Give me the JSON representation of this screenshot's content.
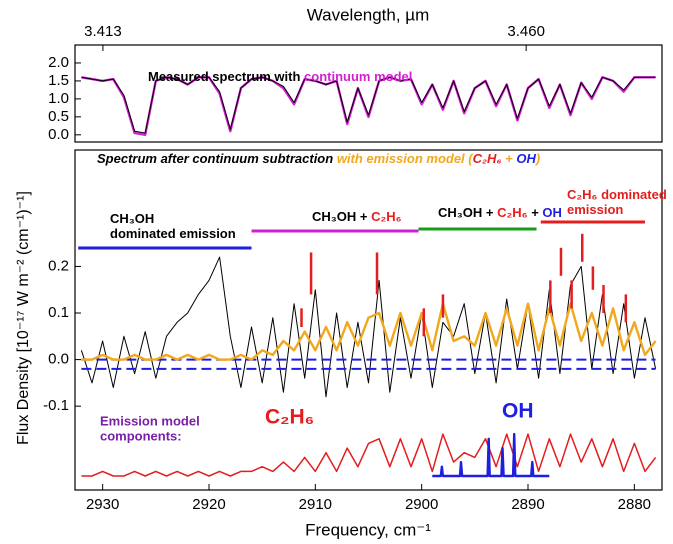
{
  "chart_data": [
    {
      "type": "line",
      "x2label": "Wavelength, µm",
      "x2ticks": [
        3.413,
        {
          "value": 3.46,
          "label": "3.460"
        }
      ],
      "title_parts": [
        {
          "text": "Measured spectrum with ",
          "color": "#000000"
        },
        {
          "text": "continuum model",
          "color": "#d21fd2"
        }
      ],
      "xlim": [
        2932.6,
        2877.4
      ],
      "ylim": [
        -0.2,
        2.5
      ],
      "yticks": [
        {
          "value": 0,
          "label": "0.0"
        },
        0.5,
        {
          "value": 1,
          "label": "1.0"
        },
        1.5,
        {
          "value": 2,
          "label": "2.0"
        }
      ],
      "x": [
        2932,
        2931,
        2930,
        2929,
        2928,
        2927,
        2926,
        2925,
        2924,
        2923,
        2922,
        2921,
        2920,
        2919,
        2918,
        2917,
        2916,
        2915,
        2914,
        2913,
        2912,
        2911,
        2910,
        2909,
        2908,
        2907,
        2906,
        2905,
        2904,
        2903,
        2902,
        2901,
        2900,
        2899,
        2898,
        2897,
        2896,
        2895,
        2894,
        2893,
        2892,
        2891,
        2890,
        2889,
        2888,
        2887,
        2886,
        2885,
        2884,
        2883,
        2882,
        2881,
        2880,
        2879,
        2878
      ],
      "series": [
        {
          "color": "#d21fd2",
          "width": 2.4,
          "values": [
            1.6,
            1.55,
            1.5,
            1.55,
            1.05,
            0.05,
            0.0,
            1.5,
            1.6,
            1.55,
            1.4,
            1.6,
            1.6,
            1.15,
            0.1,
            1.3,
            1.55,
            1.6,
            1.5,
            1.3,
            0.85,
            1.55,
            1.5,
            1.4,
            1.5,
            0.3,
            1.3,
            0.5,
            1.5,
            1.6,
            1.5,
            1.55,
            0.85,
            1.4,
            0.7,
            1.5,
            0.6,
            1.3,
            1.5,
            0.8,
            1.4,
            0.4,
            1.3,
            1.55,
            0.75,
            1.4,
            0.55,
            1.45,
            1.0,
            1.6,
            1.5,
            1.2,
            1.6,
            1.6,
            1.6
          ]
        },
        {
          "color": "#000000",
          "width": 1,
          "values": [
            1.6,
            1.55,
            1.5,
            1.55,
            1.1,
            0.1,
            0.05,
            1.5,
            1.6,
            1.55,
            1.4,
            1.6,
            1.6,
            1.2,
            0.15,
            1.3,
            1.55,
            1.6,
            1.5,
            1.35,
            0.9,
            1.55,
            1.5,
            1.4,
            1.5,
            0.35,
            1.3,
            0.55,
            1.5,
            1.6,
            1.5,
            1.55,
            0.9,
            1.4,
            0.75,
            1.5,
            0.65,
            1.3,
            1.5,
            0.85,
            1.4,
            0.45,
            1.3,
            1.55,
            0.8,
            1.4,
            0.6,
            1.45,
            1.05,
            1.6,
            1.5,
            1.25,
            1.6,
            1.6,
            1.6
          ]
        }
      ]
    },
    {
      "type": "line",
      "xlabel": "Frequency, cm⁻¹",
      "ylabel": "Flux Density [10⁻¹⁷ W m⁻² (cm⁻¹)⁻¹]",
      "title_parts": [
        {
          "text": "Spectrum after continuum subtraction ",
          "color": "#000000"
        },
        {
          "text": "with emission model (",
          "color": "#f2a81d"
        },
        {
          "text": "C₂H₆",
          "color": "#e41e1e"
        },
        {
          "text": " + ",
          "color": "#f2a81d"
        },
        {
          "text": "OH",
          "color": "#1f1fe0"
        },
        {
          "text": ")",
          "color": "#f2a81d"
        }
      ],
      "xlim": [
        2932.6,
        2877.4
      ],
      "ylim": [
        -0.28,
        0.45
      ],
      "xticks": [
        2930,
        2920,
        2910,
        2900,
        2890,
        2880
      ],
      "yticks": [
        -0.1,
        {
          "value": 0,
          "label": "0.0"
        },
        0.1,
        0.2
      ],
      "x": [
        2932,
        2931,
        2930,
        2929,
        2928,
        2927,
        2926,
        2925,
        2924,
        2923,
        2922,
        2921,
        2920,
        2919,
        2918,
        2917,
        2916,
        2915,
        2914,
        2913,
        2912,
        2911,
        2910,
        2909,
        2908,
        2907,
        2906,
        2905,
        2904,
        2903,
        2902,
        2901,
        2900,
        2899,
        2898,
        2897,
        2896,
        2895,
        2894,
        2893,
        2892,
        2891,
        2890,
        2889,
        2888,
        2887,
        2886,
        2885,
        2884,
        2883,
        2882,
        2881,
        2880,
        2879,
        2878
      ],
      "series": [
        {
          "color": "#000000",
          "width": 1,
          "values": [
            0.02,
            -0.05,
            0.04,
            -0.06,
            0.05,
            -0.03,
            0.06,
            -0.04,
            0.05,
            0.08,
            0.1,
            0.14,
            0.17,
            0.22,
            0.05,
            -0.06,
            0.07,
            -0.05,
            0.09,
            -0.07,
            0.12,
            -0.04,
            0.15,
            -0.08,
            0.1,
            -0.06,
            0.08,
            -0.05,
            0.17,
            -0.07,
            0.09,
            -0.04,
            0.1,
            -0.06,
            0.08,
            0.05,
            0.12,
            -0.03,
            0.1,
            -0.05,
            0.13,
            -0.02,
            0.12,
            -0.04,
            0.15,
            -0.03,
            0.16,
            0.2,
            -0.02,
            0.14,
            -0.03,
            0.12,
            -0.04,
            0.09,
            -0.02
          ]
        },
        {
          "color": "#1f1fe0",
          "width": 2,
          "dash": true,
          "x": [
            2932,
            2878
          ],
          "values": [
            0.0,
            0.0
          ]
        },
        {
          "color": "#1f1fe0",
          "width": 2,
          "dash": true,
          "x": [
            2932,
            2878
          ],
          "values": [
            -0.02,
            -0.02
          ]
        },
        {
          "color": "#f2a81d",
          "width": 2.4,
          "values": [
            0.0,
            0.0,
            0.01,
            0.0,
            0.0,
            0.01,
            0.0,
            0.0,
            0.01,
            0.0,
            0.01,
            0.0,
            0.01,
            0.0,
            0.0,
            0.01,
            0.0,
            0.02,
            0.01,
            0.04,
            0.02,
            0.06,
            0.02,
            0.07,
            0.02,
            0.08,
            0.03,
            0.09,
            0.1,
            0.03,
            0.1,
            0.03,
            0.1,
            0.02,
            0.12,
            0.04,
            0.05,
            0.03,
            0.1,
            0.03,
            0.11,
            0.03,
            0.12,
            0.02,
            0.11,
            0.03,
            0.12,
            0.04,
            0.1,
            0.03,
            0.11,
            0.02,
            0.08,
            0.01,
            0.04
          ]
        },
        {
          "color": "#e41e1e",
          "width": 1.5,
          "values": [
            -0.25,
            -0.25,
            -0.24,
            -0.25,
            -0.25,
            -0.24,
            -0.25,
            -0.24,
            -0.25,
            -0.24,
            -0.25,
            -0.24,
            -0.25,
            -0.24,
            -0.25,
            -0.24,
            -0.24,
            -0.23,
            -0.24,
            -0.22,
            -0.24,
            -0.21,
            -0.24,
            -0.2,
            -0.24,
            -0.19,
            -0.23,
            -0.18,
            -0.17,
            -0.23,
            -0.17,
            -0.23,
            -0.17,
            -0.24,
            -0.16,
            -0.22,
            -0.2,
            -0.21,
            -0.17,
            -0.23,
            -0.16,
            -0.23,
            -0.16,
            -0.24,
            -0.17,
            -0.23,
            -0.16,
            -0.22,
            -0.17,
            -0.23,
            -0.17,
            -0.24,
            -0.18,
            -0.24,
            -0.21
          ]
        },
        {
          "color": "#1f1fe0",
          "width": 2.4,
          "x": [
            2899,
            2898.2,
            2898.1,
            2898.0,
            2896.4,
            2896.3,
            2896.2,
            2893.8,
            2893.7,
            2893.6,
            2892.5,
            2892.4,
            2892.3,
            2891.4,
            2891.3,
            2891.2,
            2889.7,
            2889.6,
            2889.5,
            2888
          ],
          "values": [
            -0.25,
            -0.25,
            -0.23,
            -0.25,
            -0.25,
            -0.22,
            -0.25,
            -0.25,
            -0.17,
            -0.25,
            -0.25,
            -0.19,
            -0.25,
            -0.25,
            -0.16,
            -0.25,
            -0.25,
            -0.22,
            -0.25,
            -0.25
          ]
        }
      ],
      "regions": [
        {
          "color": "#1f1fe0",
          "x_range": [
            2932.3,
            2916
          ],
          "label_lines": [
            [
              {
                "text": "CH₃OH",
                "color": "#000000"
              }
            ],
            [
              {
                "text": "dominated emission",
                "color": "#000000"
              }
            ]
          ]
        },
        {
          "color": "#d21fd2",
          "x_range": [
            2916,
            2900.3
          ],
          "label_lines": [
            [
              {
                "text": "CH₃OH + ",
                "color": "#000000"
              },
              {
                "text": "C₂H₆",
                "color": "#e41e1e"
              }
            ]
          ]
        },
        {
          "color": "#1a9a1a",
          "x_range": [
            2900.3,
            2889.2
          ],
          "label_lines": [
            [
              {
                "text": "CH₃OH + ",
                "color": "#000000"
              },
              {
                "text": "C₂H₆",
                "color": "#e41e1e"
              },
              {
                "text": " + ",
                "color": "#000000"
              },
              {
                "text": "OH",
                "color": "#1f1fe0"
              }
            ]
          ]
        },
        {
          "color": "#e41e1e",
          "x_range": [
            2888.8,
            2879
          ],
          "label_lines": [
            [
              {
                "text": "C₂H₆ dominated",
                "color": "#e41e1e"
              }
            ],
            [
              {
                "text": "emission",
                "color": "#e41e1e"
              }
            ]
          ]
        }
      ],
      "markers": {
        "color": "#e41e1e",
        "x": [
          2911.3,
          2910.4,
          2904.2,
          2899.8,
          2898.0,
          2887.9,
          2886.9,
          2885.9,
          2884.9,
          2883.9,
          2882.9,
          2880.8
        ],
        "low": [
          0.07,
          0.14,
          0.14,
          0.05,
          0.09,
          0.1,
          0.18,
          0.11,
          0.21,
          0.15,
          0.1,
          0.08
        ],
        "high": [
          0.11,
          0.23,
          0.23,
          0.11,
          0.14,
          0.17,
          0.24,
          0.17,
          0.27,
          0.2,
          0.16,
          0.14
        ]
      },
      "component_title": [
        "Emission model",
        "components:"
      ],
      "component_title_color": "#7a1fa8",
      "component_labels": [
        {
          "text": "C₂H₆",
          "color": "#e41e1e"
        },
        {
          "text": "OH",
          "color": "#1f1fe0"
        }
      ]
    }
  ]
}
